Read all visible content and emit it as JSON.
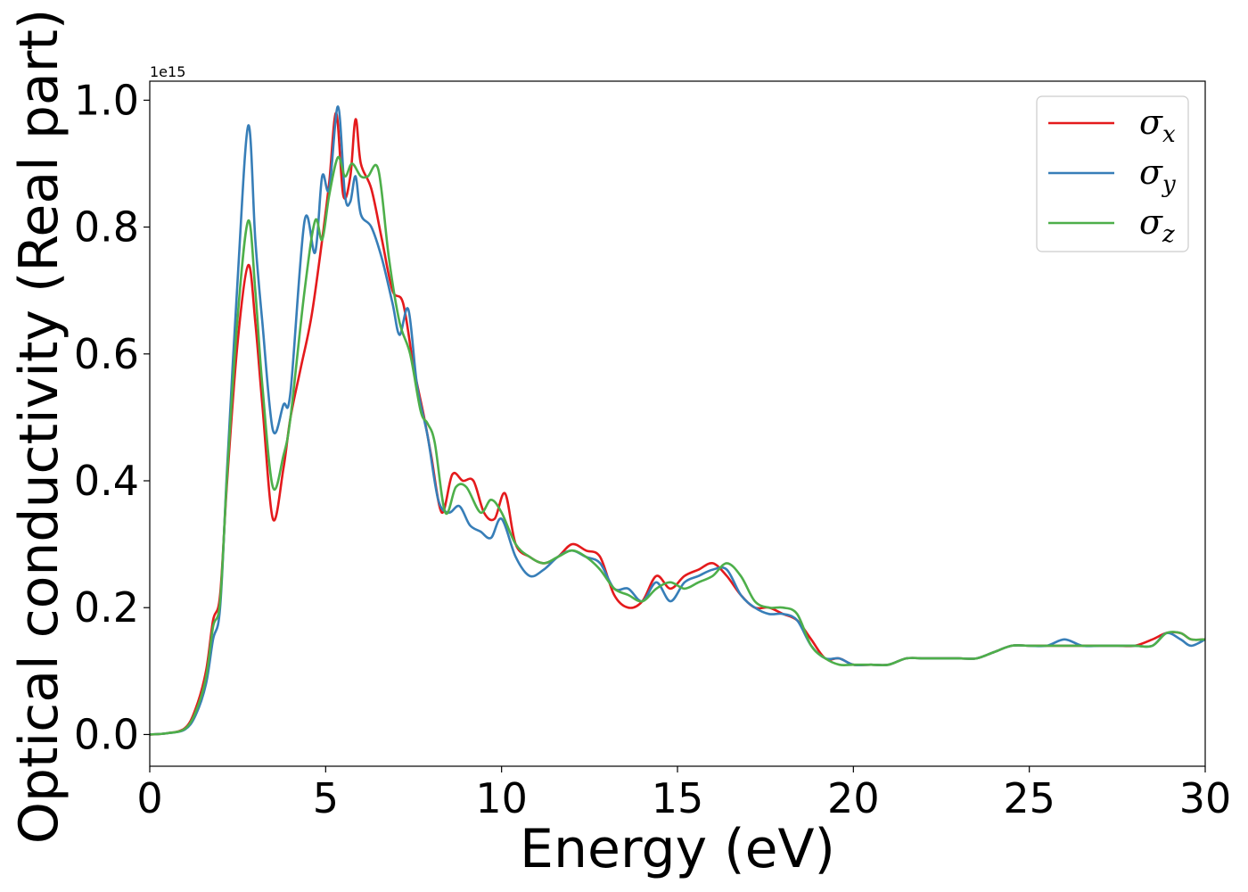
{
  "chart_data": {
    "type": "line",
    "xlabel": "Energy (eV)",
    "ylabel": "Optical conductivity (Real part)",
    "y_offset_label": "1e15",
    "xlim": [
      0,
      30
    ],
    "ylim": [
      -0.05,
      1.03
    ],
    "x_ticks": [
      0,
      5,
      10,
      15,
      20,
      25,
      30
    ],
    "x_tick_labels": [
      "0",
      "5",
      "10",
      "15",
      "20",
      "25",
      "30"
    ],
    "y_ticks": [
      0.0,
      0.2,
      0.4,
      0.6,
      0.8,
      1.0
    ],
    "y_tick_labels": [
      "0.0",
      "0.2",
      "0.4",
      "0.6",
      "0.8",
      "1.0"
    ],
    "grid": false,
    "legend_position": "top-right",
    "series": [
      {
        "name": "σx",
        "symbol": "σ",
        "subscript": "x",
        "color": "#e41a1c",
        "x": [
          0,
          0.5,
          1.0,
          1.3,
          1.6,
          1.8,
          2.0,
          2.2,
          2.5,
          2.8,
          3.0,
          3.2,
          3.5,
          3.8,
          4.0,
          4.3,
          4.6,
          4.9,
          5.1,
          5.3,
          5.5,
          5.7,
          5.85,
          6.0,
          6.3,
          6.6,
          6.9,
          7.2,
          7.5,
          7.8,
          8.0,
          8.3,
          8.6,
          8.9,
          9.2,
          9.5,
          9.8,
          10.1,
          10.4,
          10.8,
          11.2,
          11.6,
          12.0,
          12.4,
          12.8,
          13.2,
          13.6,
          14.0,
          14.4,
          14.8,
          15.2,
          15.6,
          16.0,
          16.4,
          16.8,
          17.2,
          17.6,
          18.0,
          18.4,
          18.8,
          19.2,
          19.6,
          20.0,
          20.5,
          21.0,
          21.5,
          22.0,
          22.5,
          23.0,
          23.5,
          24.0,
          24.5,
          25.0,
          25.5,
          26.0,
          26.5,
          27.0,
          27.5,
          28.0,
          28.5,
          28.9,
          29.3,
          29.6,
          30.0
        ],
        "values": [
          0.0,
          0.002,
          0.01,
          0.04,
          0.1,
          0.18,
          0.22,
          0.4,
          0.62,
          0.74,
          0.65,
          0.52,
          0.34,
          0.42,
          0.5,
          0.58,
          0.66,
          0.78,
          0.87,
          0.98,
          0.85,
          0.88,
          0.97,
          0.9,
          0.86,
          0.78,
          0.7,
          0.68,
          0.58,
          0.5,
          0.44,
          0.35,
          0.41,
          0.4,
          0.4,
          0.35,
          0.34,
          0.38,
          0.3,
          0.28,
          0.27,
          0.28,
          0.3,
          0.29,
          0.28,
          0.22,
          0.2,
          0.21,
          0.25,
          0.23,
          0.25,
          0.26,
          0.27,
          0.25,
          0.22,
          0.2,
          0.2,
          0.19,
          0.18,
          0.15,
          0.12,
          0.12,
          0.11,
          0.11,
          0.11,
          0.12,
          0.12,
          0.12,
          0.12,
          0.12,
          0.13,
          0.14,
          0.14,
          0.14,
          0.14,
          0.14,
          0.14,
          0.14,
          0.14,
          0.15,
          0.16,
          0.16,
          0.15,
          0.15
        ]
      },
      {
        "name": "σy",
        "symbol": "σ",
        "subscript": "y",
        "color": "#377eb8",
        "x": [
          0,
          0.5,
          1.0,
          1.3,
          1.6,
          1.8,
          2.0,
          2.2,
          2.5,
          2.8,
          3.0,
          3.2,
          3.5,
          3.8,
          4.0,
          4.4,
          4.7,
          4.9,
          5.1,
          5.35,
          5.55,
          5.7,
          5.85,
          6.0,
          6.3,
          6.6,
          6.9,
          7.1,
          7.35,
          7.6,
          7.9,
          8.2,
          8.5,
          8.8,
          9.1,
          9.4,
          9.7,
          10.0,
          10.4,
          10.8,
          11.2,
          11.6,
          12.0,
          12.4,
          12.8,
          13.2,
          13.6,
          14.0,
          14.4,
          14.8,
          15.2,
          15.6,
          16.0,
          16.4,
          16.8,
          17.2,
          17.6,
          18.0,
          18.4,
          18.8,
          19.2,
          19.6,
          20.0,
          20.5,
          21.0,
          21.5,
          22.0,
          22.5,
          23.0,
          23.5,
          24.0,
          24.5,
          25.0,
          25.5,
          26.0,
          26.5,
          27.0,
          27.5,
          28.0,
          28.5,
          28.9,
          29.3,
          29.6,
          30.0
        ],
        "values": [
          0.0,
          0.002,
          0.008,
          0.03,
          0.08,
          0.15,
          0.2,
          0.42,
          0.72,
          0.96,
          0.78,
          0.65,
          0.48,
          0.52,
          0.54,
          0.81,
          0.76,
          0.88,
          0.86,
          0.99,
          0.85,
          0.84,
          0.88,
          0.82,
          0.8,
          0.75,
          0.68,
          0.63,
          0.67,
          0.55,
          0.47,
          0.37,
          0.35,
          0.36,
          0.33,
          0.32,
          0.31,
          0.34,
          0.28,
          0.25,
          0.26,
          0.28,
          0.29,
          0.28,
          0.27,
          0.23,
          0.23,
          0.21,
          0.24,
          0.21,
          0.24,
          0.25,
          0.26,
          0.26,
          0.22,
          0.2,
          0.19,
          0.19,
          0.18,
          0.14,
          0.12,
          0.12,
          0.11,
          0.11,
          0.11,
          0.12,
          0.12,
          0.12,
          0.12,
          0.12,
          0.13,
          0.14,
          0.14,
          0.14,
          0.15,
          0.14,
          0.14,
          0.14,
          0.14,
          0.14,
          0.16,
          0.15,
          0.14,
          0.15
        ]
      },
      {
        "name": "σz",
        "symbol": "σ",
        "subscript": "z",
        "color": "#4daf4a",
        "x": [
          0,
          0.5,
          1.0,
          1.3,
          1.6,
          1.8,
          2.0,
          2.2,
          2.5,
          2.8,
          3.0,
          3.2,
          3.5,
          3.8,
          4.0,
          4.4,
          4.7,
          4.9,
          5.1,
          5.35,
          5.55,
          5.75,
          6.0,
          6.2,
          6.5,
          6.8,
          7.1,
          7.4,
          7.7,
          7.9,
          8.1,
          8.4,
          8.7,
          9.0,
          9.4,
          9.7,
          10.0,
          10.4,
          10.8,
          11.2,
          11.6,
          12.0,
          12.4,
          12.8,
          13.2,
          13.6,
          14.0,
          14.4,
          14.8,
          15.2,
          15.6,
          16.0,
          16.4,
          16.8,
          17.2,
          17.6,
          18.0,
          18.4,
          18.8,
          19.2,
          19.6,
          20.0,
          20.5,
          21.0,
          21.5,
          22.0,
          22.5,
          23.0,
          23.5,
          24.0,
          24.5,
          25.0,
          25.5,
          26.0,
          26.5,
          27.0,
          27.5,
          28.0,
          28.5,
          28.9,
          29.3,
          29.6,
          30.0
        ],
        "values": [
          0.0,
          0.002,
          0.009,
          0.035,
          0.09,
          0.17,
          0.21,
          0.41,
          0.66,
          0.81,
          0.7,
          0.55,
          0.39,
          0.44,
          0.5,
          0.7,
          0.81,
          0.78,
          0.85,
          0.91,
          0.88,
          0.9,
          0.88,
          0.88,
          0.89,
          0.75,
          0.65,
          0.6,
          0.51,
          0.49,
          0.46,
          0.35,
          0.39,
          0.39,
          0.35,
          0.37,
          0.35,
          0.3,
          0.28,
          0.27,
          0.28,
          0.29,
          0.28,
          0.26,
          0.23,
          0.22,
          0.21,
          0.23,
          0.24,
          0.23,
          0.24,
          0.25,
          0.27,
          0.25,
          0.21,
          0.2,
          0.2,
          0.19,
          0.14,
          0.12,
          0.11,
          0.11,
          0.11,
          0.11,
          0.12,
          0.12,
          0.12,
          0.12,
          0.12,
          0.13,
          0.14,
          0.14,
          0.14,
          0.14,
          0.14,
          0.14,
          0.14,
          0.14,
          0.14,
          0.16,
          0.16,
          0.15,
          0.15
        ]
      }
    ]
  }
}
